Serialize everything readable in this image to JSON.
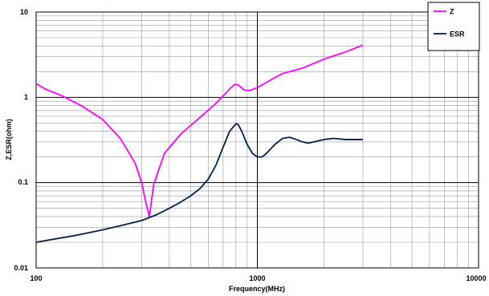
{
  "chart_data": {
    "type": "line",
    "xlabel": "Frequency(MHz)",
    "ylabel": "Z,ESR(ohm)",
    "x_scale": "log",
    "y_scale": "log",
    "xlim": [
      100,
      10000
    ],
    "ylim": [
      0.01,
      10
    ],
    "x_ticks": [
      "100",
      "1000",
      "10000"
    ],
    "y_ticks": [
      "10",
      "1",
      "0.1",
      "0.01"
    ],
    "grid": true,
    "legend_position": "top-right",
    "colors": {
      "Z": "#ff00ff",
      "ESR": "#002050"
    },
    "series": [
      {
        "name": "Z",
        "x": [
          100,
          110,
          130,
          160,
          200,
          240,
          280,
          300,
          315,
          325,
          340,
          380,
          450,
          550,
          650,
          750,
          790,
          820,
          870,
          920,
          1000,
          1100,
          1200,
          1300,
          1400,
          1600,
          1800,
          2000,
          2500,
          3000
        ],
        "y": [
          1.45,
          1.25,
          1.05,
          0.8,
          0.55,
          0.33,
          0.17,
          0.1,
          0.055,
          0.04,
          0.095,
          0.22,
          0.37,
          0.58,
          0.85,
          1.25,
          1.42,
          1.4,
          1.22,
          1.2,
          1.3,
          1.5,
          1.7,
          1.9,
          2.0,
          2.2,
          2.5,
          2.8,
          3.4,
          4.1
        ]
      },
      {
        "name": "ESR",
        "x": [
          100,
          150,
          200,
          250,
          300,
          325,
          350,
          400,
          450,
          500,
          550,
          600,
          650,
          700,
          750,
          800,
          820,
          850,
          900,
          950,
          1000,
          1050,
          1100,
          1200,
          1300,
          1400,
          1500,
          1600,
          1700,
          1800,
          2000,
          2200,
          2500,
          3000
        ],
        "y": [
          0.02,
          0.024,
          0.028,
          0.032,
          0.036,
          0.039,
          0.042,
          0.05,
          0.059,
          0.07,
          0.085,
          0.11,
          0.16,
          0.26,
          0.4,
          0.49,
          0.48,
          0.4,
          0.28,
          0.22,
          0.2,
          0.2,
          0.22,
          0.28,
          0.33,
          0.34,
          0.32,
          0.3,
          0.29,
          0.3,
          0.32,
          0.33,
          0.32,
          0.32
        ]
      }
    ]
  }
}
